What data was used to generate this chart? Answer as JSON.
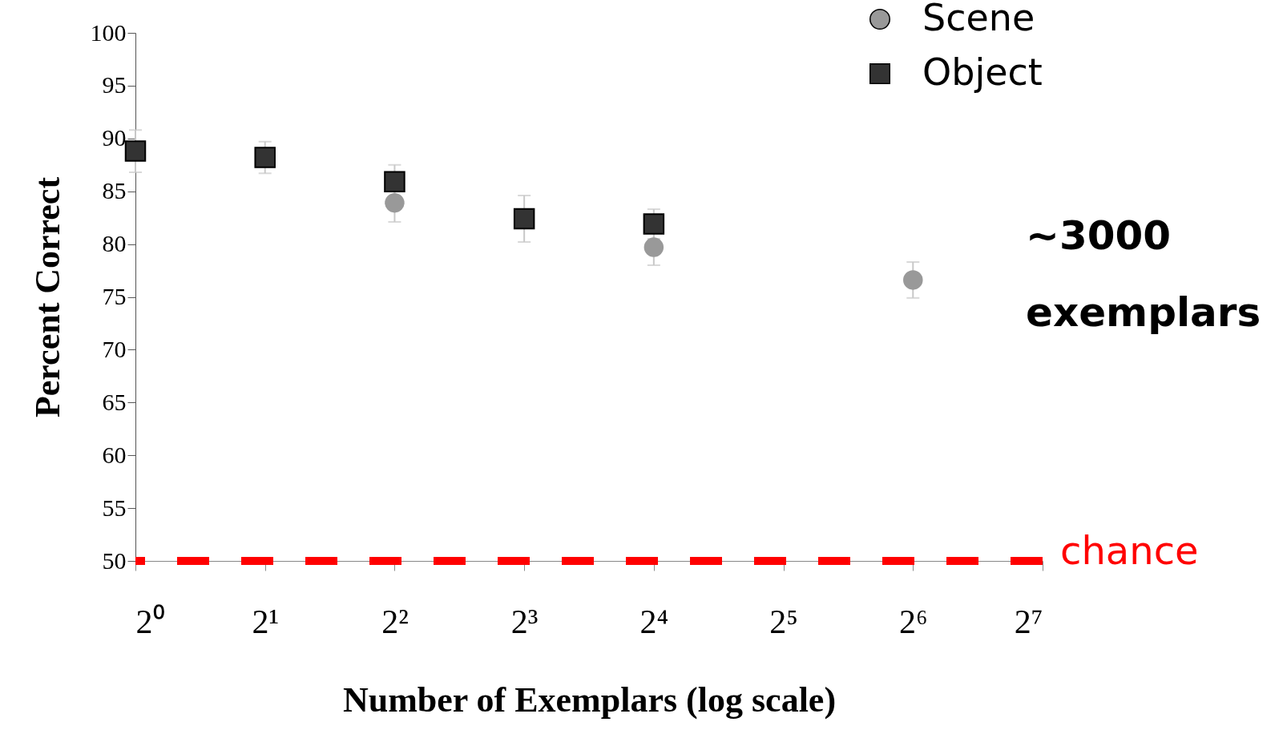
{
  "chart_data": {
    "type": "scatter",
    "xlabel": "Number of Exemplars (log scale)",
    "ylabel": "Percent Correct",
    "log": "x",
    "xlim": [
      1,
      128
    ],
    "ylim": [
      50,
      100
    ],
    "xticks": [
      {
        "value": 1,
        "label": "2⁰"
      },
      {
        "value": 2,
        "label": "2¹"
      },
      {
        "value": 4,
        "label": "2²"
      },
      {
        "value": 8,
        "label": "2³"
      },
      {
        "value": 16,
        "label": "2⁴"
      },
      {
        "value": 32,
        "label": "2⁵"
      },
      {
        "value": 64,
        "label": "2⁶"
      },
      {
        "value": 128,
        "label": "2⁷"
      }
    ],
    "yticks": [
      50,
      55,
      60,
      65,
      70,
      75,
      80,
      85,
      90,
      95,
      100
    ],
    "grid": false,
    "legend": "top right",
    "series": [
      {
        "name": "Scene",
        "color": "#999999",
        "marker": "circle",
        "x": [
          4,
          16,
          64
        ],
        "values": [
          83.9,
          79.7,
          76.6
        ],
        "errors": [
          1.8,
          1.7,
          1.7
        ]
      },
      {
        "name": "Object",
        "color": "#333333",
        "marker": "square",
        "x": [
          1,
          2,
          4,
          8,
          16
        ],
        "values": [
          88.8,
          88.2,
          85.9,
          82.4,
          81.9
        ],
        "errors": [
          2,
          1.5,
          1.6,
          2.2,
          1.4
        ]
      }
    ],
    "ref_lines": [
      {
        "axis": "y",
        "value": 50,
        "label": "chance",
        "color": "#ff0000",
        "line_style": "dashed"
      }
    ],
    "annotations": [
      "~3000 exemplars"
    ]
  }
}
